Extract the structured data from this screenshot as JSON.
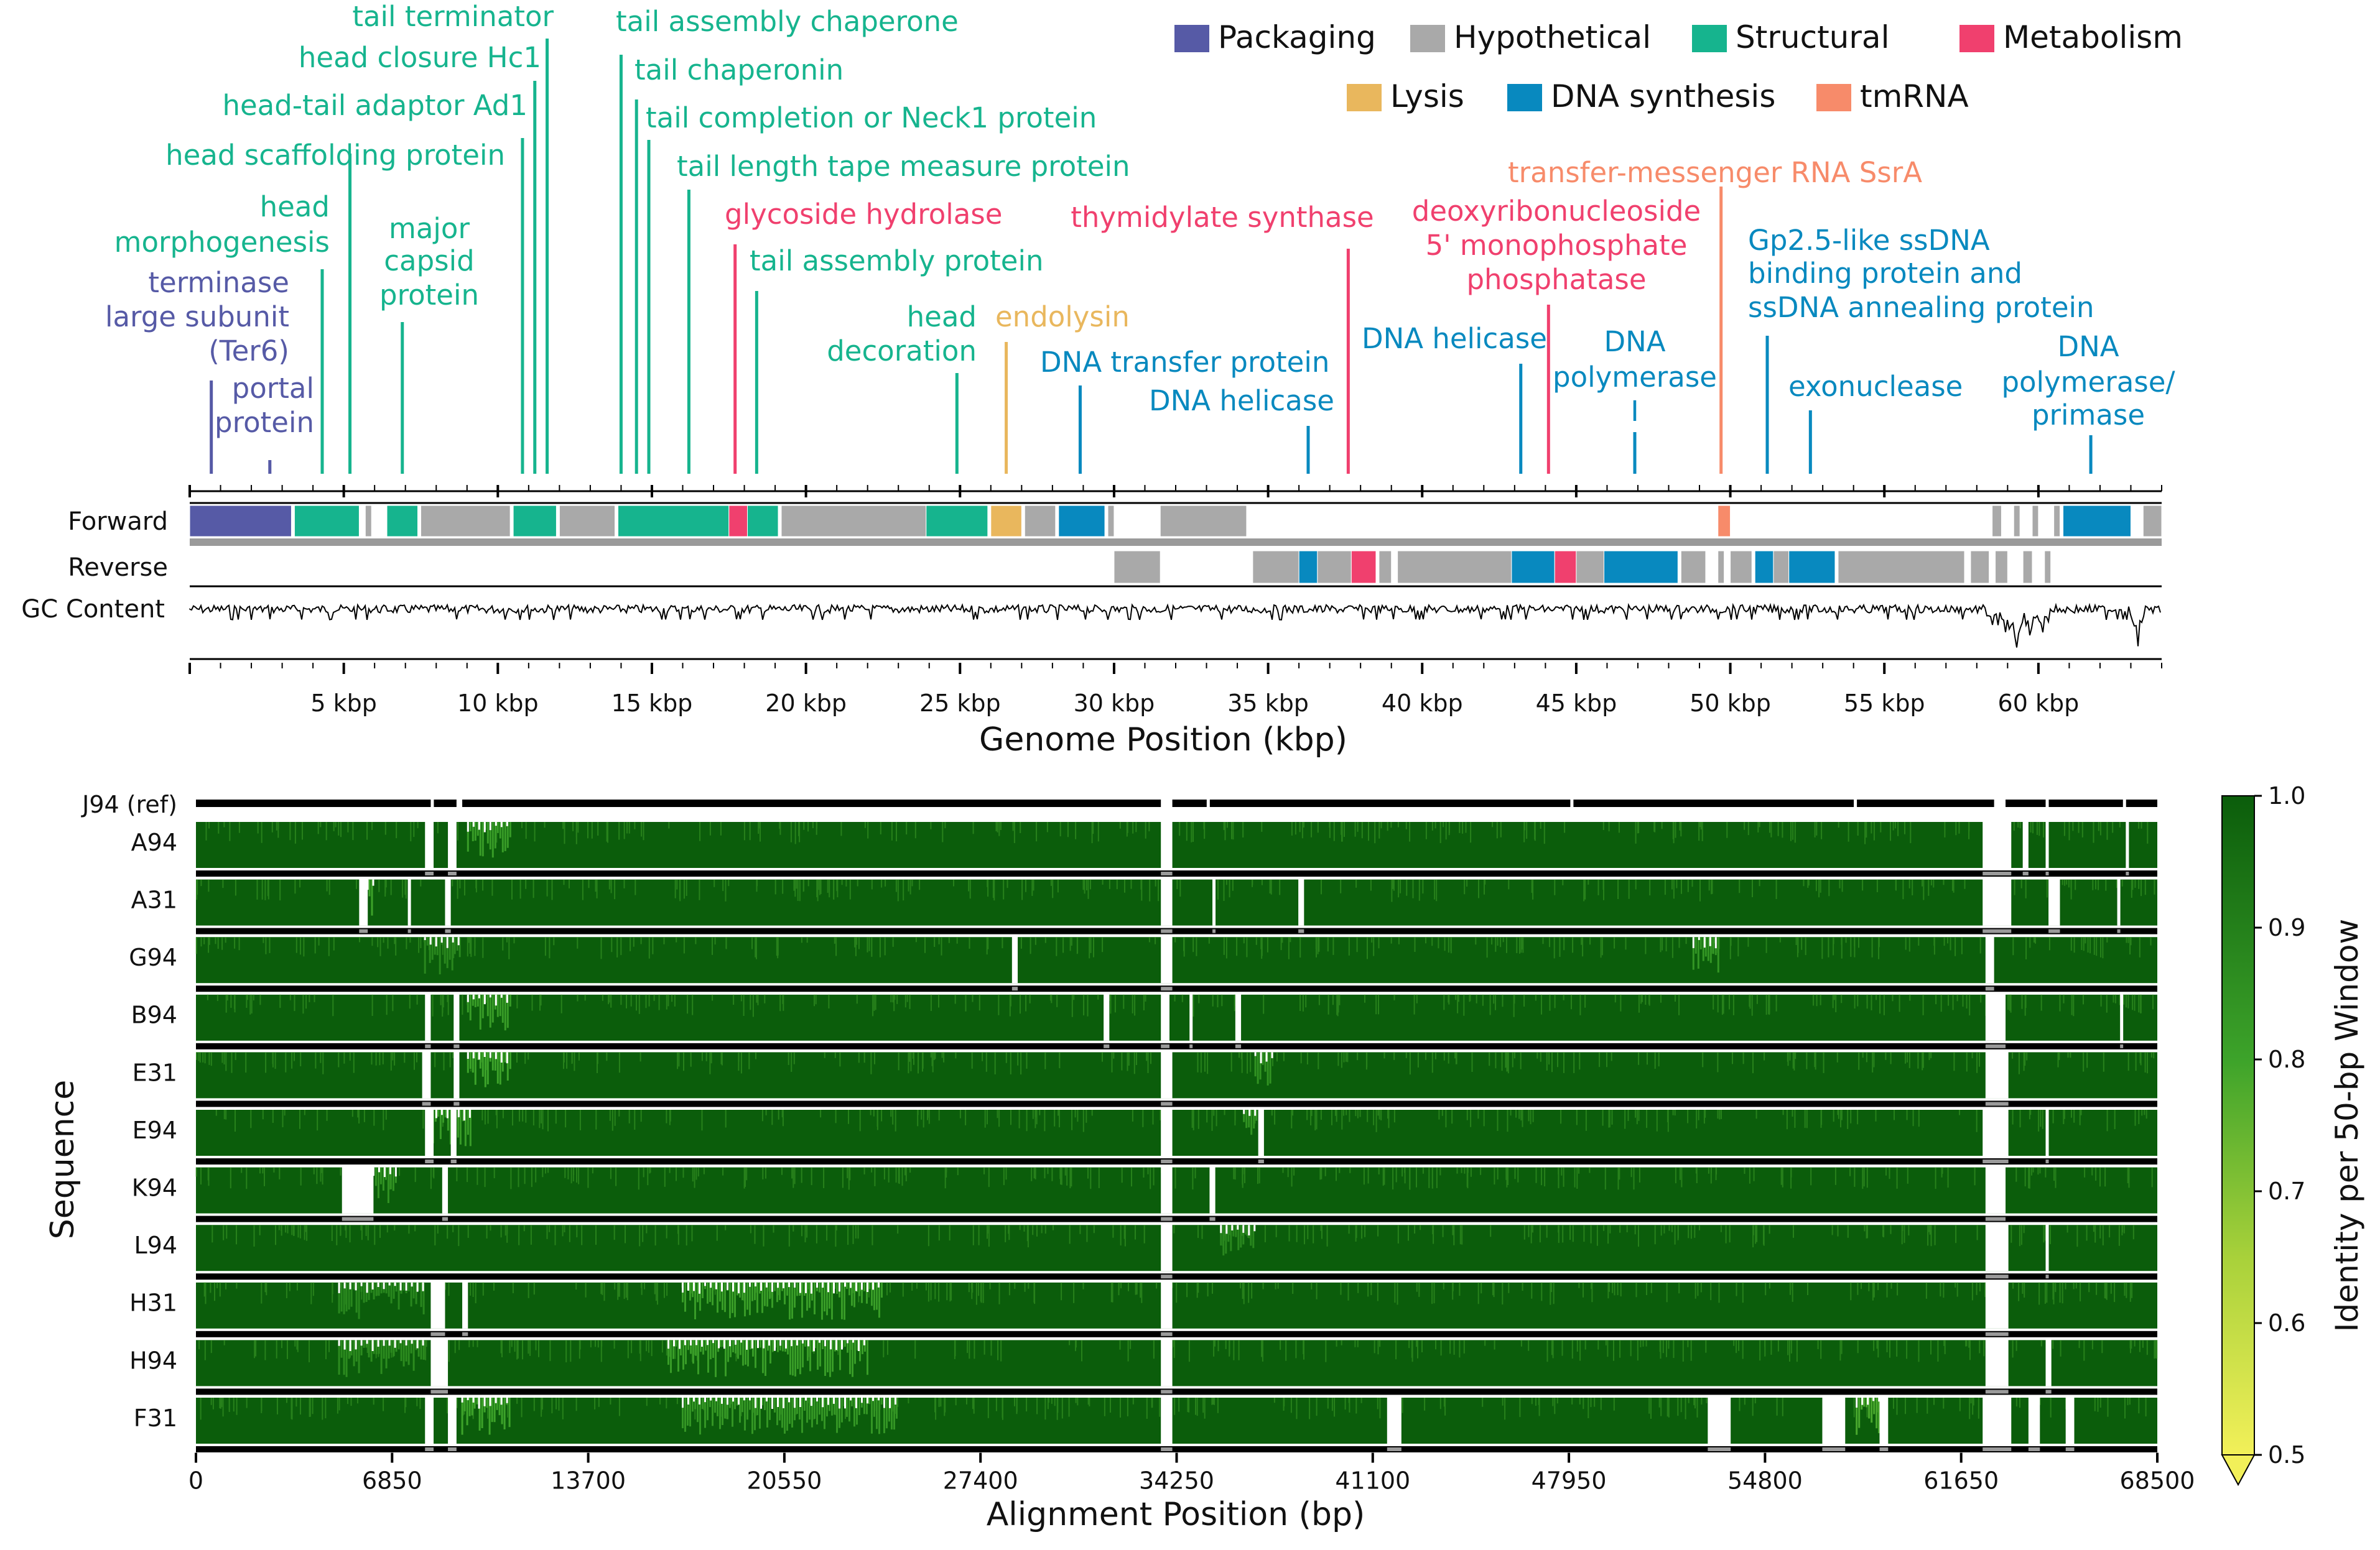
{
  "colors": {
    "Packaging": "#565aa6",
    "Hypothetical": "#a9a9a9",
    "Structural": "#16b48e",
    "Metabolism": "#f0406e",
    "Lysis": "#e9b75d",
    "DNA synthesis": "#0889bf",
    "tmRNA": "#f78b6a",
    "identity_dark": "#0b5d0b",
    "identity_mid": "#2f9a1f",
    "identity_light": "#d9e352"
  },
  "legend": {
    "entries": [
      {
        "label": "Packaging",
        "category": "Packaging"
      },
      {
        "label": "Hypothetical",
        "category": "Hypothetical"
      },
      {
        "label": "Structural",
        "category": "Structural"
      },
      {
        "label": "Metabolism",
        "category": "Metabolism"
      },
      {
        "label": "Lysis",
        "category": "Lysis"
      },
      {
        "label": "DNA synthesis",
        "category": "DNA synthesis"
      },
      {
        "label": "tmRNA",
        "category": "tmRNA"
      }
    ]
  },
  "chart_data": [
    {
      "type": "genome_map",
      "title": "",
      "xlabel": "Genome Position (kbp)",
      "xlim": [
        0,
        64
      ],
      "ticks": [
        5,
        10,
        15,
        20,
        25,
        30,
        35,
        40,
        45,
        50,
        55,
        60
      ],
      "tick_labels": [
        "5 kbp",
        "10 kbp",
        "15 kbp",
        "20 kbp",
        "25 kbp",
        "30 kbp",
        "35 kbp",
        "40 kbp",
        "45 kbp",
        "50 kbp",
        "55 kbp",
        "60 kbp"
      ],
      "track_labels": {
        "forward": "Forward",
        "reverse": "Reverse",
        "gc": "GC Content"
      },
      "annotations": [
        {
          "lines": [
            "terminase",
            "large subunit",
            "(Ter6)"
          ],
          "pos": 0.7,
          "category": "Packaging"
        },
        {
          "lines": [
            "portal",
            "protein"
          ],
          "pos": 2.6,
          "category": "Packaging"
        },
        {
          "lines": [
            "head",
            "morphogenesis"
          ],
          "pos": 4.3,
          "category": "Structural"
        },
        {
          "lines": [
            "head scaffolding protein"
          ],
          "pos": 5.2,
          "category": "Structural"
        },
        {
          "lines": [
            "major",
            "capsid",
            "protein"
          ],
          "pos": 6.9,
          "category": "Structural"
        },
        {
          "lines": [
            "head-tail adaptor Ad1"
          ],
          "pos": 10.8,
          "category": "Structural"
        },
        {
          "lines": [
            "head closure Hc1"
          ],
          "pos": 11.2,
          "category": "Structural"
        },
        {
          "lines": [
            "tail terminator"
          ],
          "pos": 11.6,
          "category": "Structural"
        },
        {
          "lines": [
            "tail assembly chaperone"
          ],
          "pos": 14.0,
          "category": "Structural"
        },
        {
          "lines": [
            "tail chaperonin"
          ],
          "pos": 14.5,
          "category": "Structural"
        },
        {
          "lines": [
            "tail completion or Neck1 protein"
          ],
          "pos": 14.9,
          "category": "Structural"
        },
        {
          "lines": [
            "tail length tape measure protein"
          ],
          "pos": 16.2,
          "category": "Structural"
        },
        {
          "lines": [
            "glycoside hydrolase"
          ],
          "pos": 17.7,
          "category": "Metabolism"
        },
        {
          "lines": [
            "tail assembly protein"
          ],
          "pos": 18.4,
          "category": "Structural"
        },
        {
          "lines": [
            "head",
            "decoration"
          ],
          "pos": 24.9,
          "category": "Structural"
        },
        {
          "lines": [
            "endolysin"
          ],
          "pos": 26.5,
          "category": "Lysis"
        },
        {
          "lines": [
            "DNA transfer protein"
          ],
          "pos": 28.9,
          "category": "DNA synthesis"
        },
        {
          "lines": [
            "DNA helicase"
          ],
          "pos": 36.3,
          "category": "DNA synthesis"
        },
        {
          "lines": [
            "thymidylate synthase"
          ],
          "pos": 37.6,
          "category": "Metabolism"
        },
        {
          "lines": [
            "DNA helicase"
          ],
          "pos": 43.2,
          "category": "DNA synthesis"
        },
        {
          "lines": [
            "deoxyribonucleoside",
            "5' monophosphate",
            "phosphatase"
          ],
          "pos": 44.1,
          "category": "Metabolism"
        },
        {
          "lines": [
            "DNA",
            "polymerase",
            "I"
          ],
          "pos": 46.9,
          "category": "DNA synthesis"
        },
        {
          "lines": [
            "transfer-messenger RNA SsrA"
          ],
          "pos": 49.7,
          "category": "tmRNA"
        },
        {
          "lines": [
            "Gp2.5-like ssDNA",
            "binding protein and",
            "ssDNA annealing protein"
          ],
          "pos": 51.2,
          "category": "DNA synthesis"
        },
        {
          "lines": [
            "exonuclease"
          ],
          "pos": 52.6,
          "category": "DNA synthesis"
        },
        {
          "lines": [
            "DNA",
            "polymerase/",
            "primase"
          ],
          "pos": 61.7,
          "category": "DNA synthesis"
        }
      ],
      "forward_genes": [
        {
          "start": 0.0,
          "end": 3.3,
          "category": "Packaging"
        },
        {
          "start": 3.4,
          "end": 5.5,
          "category": "Structural"
        },
        {
          "start": 5.7,
          "end": 5.9,
          "category": "Hypothetical"
        },
        {
          "start": 6.4,
          "end": 7.4,
          "category": "Structural"
        },
        {
          "start": 7.5,
          "end": 10.4,
          "category": "Hypothetical"
        },
        {
          "start": 10.5,
          "end": 11.9,
          "category": "Structural"
        },
        {
          "start": 12.0,
          "end": 13.8,
          "category": "Hypothetical"
        },
        {
          "start": 13.9,
          "end": 17.5,
          "category": "Structural"
        },
        {
          "start": 17.5,
          "end": 18.1,
          "category": "Metabolism"
        },
        {
          "start": 18.1,
          "end": 19.1,
          "category": "Structural"
        },
        {
          "start": 19.2,
          "end": 23.9,
          "category": "Hypothetical"
        },
        {
          "start": 23.9,
          "end": 25.9,
          "category": "Structural"
        },
        {
          "start": 26.0,
          "end": 27.0,
          "category": "Lysis"
        },
        {
          "start": 27.1,
          "end": 28.1,
          "category": "Hypothetical"
        },
        {
          "start": 28.2,
          "end": 29.7,
          "category": "DNA synthesis"
        },
        {
          "start": 29.8,
          "end": 30.0,
          "category": "Hypothetical"
        },
        {
          "start": 31.5,
          "end": 34.3,
          "category": "Hypothetical"
        },
        {
          "start": 49.6,
          "end": 50.0,
          "category": "tmRNA"
        },
        {
          "start": 58.5,
          "end": 58.8,
          "category": "Hypothetical"
        },
        {
          "start": 59.2,
          "end": 59.4,
          "category": "Hypothetical"
        },
        {
          "start": 59.8,
          "end": 60.0,
          "category": "Hypothetical"
        },
        {
          "start": 60.5,
          "end": 60.7,
          "category": "Hypothetical"
        },
        {
          "start": 60.8,
          "end": 63.0,
          "category": "DNA synthesis"
        },
        {
          "start": 63.4,
          "end": 64.0,
          "category": "Hypothetical"
        }
      ],
      "reverse_genes": [
        {
          "start": 30.0,
          "end": 31.5,
          "category": "Hypothetical"
        },
        {
          "start": 34.5,
          "end": 36.0,
          "category": "Hypothetical"
        },
        {
          "start": 36.0,
          "end": 36.6,
          "category": "DNA synthesis"
        },
        {
          "start": 36.6,
          "end": 37.7,
          "category": "Hypothetical"
        },
        {
          "start": 37.7,
          "end": 38.5,
          "category": "Metabolism"
        },
        {
          "start": 38.6,
          "end": 39.0,
          "category": "Hypothetical"
        },
        {
          "start": 39.2,
          "end": 42.9,
          "category": "Hypothetical"
        },
        {
          "start": 42.9,
          "end": 44.3,
          "category": "DNA synthesis"
        },
        {
          "start": 44.3,
          "end": 45.0,
          "category": "Metabolism"
        },
        {
          "start": 45.0,
          "end": 45.9,
          "category": "Hypothetical"
        },
        {
          "start": 45.9,
          "end": 48.3,
          "category": "DNA synthesis"
        },
        {
          "start": 48.4,
          "end": 49.2,
          "category": "Hypothetical"
        },
        {
          "start": 49.6,
          "end": 49.8,
          "category": "Hypothetical"
        },
        {
          "start": 50.0,
          "end": 50.7,
          "category": "Hypothetical"
        },
        {
          "start": 50.8,
          "end": 51.4,
          "category": "DNA synthesis"
        },
        {
          "start": 51.4,
          "end": 51.9,
          "category": "Hypothetical"
        },
        {
          "start": 51.9,
          "end": 53.4,
          "category": "DNA synthesis"
        },
        {
          "start": 53.5,
          "end": 57.6,
          "category": "Hypothetical"
        },
        {
          "start": 57.8,
          "end": 58.4,
          "category": "Hypothetical"
        },
        {
          "start": 58.6,
          "end": 59.0,
          "category": "Hypothetical"
        },
        {
          "start": 59.5,
          "end": 59.8,
          "category": "Hypothetical"
        },
        {
          "start": 60.2,
          "end": 60.4,
          "category": "Hypothetical"
        }
      ],
      "gc_dips": [
        {
          "pos": 58.5,
          "depth": 0.5
        },
        {
          "pos": 58.9,
          "depth": 0.7
        },
        {
          "pos": 59.3,
          "depth": 0.9
        },
        {
          "pos": 59.7,
          "depth": 0.8
        },
        {
          "pos": 60.1,
          "depth": 0.6
        },
        {
          "pos": 63.2,
          "depth": 1.0
        }
      ]
    },
    {
      "type": "heatmap",
      "xlabel": "Alignment Position (bp)",
      "ylabel": "Sequence",
      "xlim": [
        0,
        68500
      ],
      "xticks": [
        0,
        6850,
        13700,
        20550,
        27400,
        34250,
        41100,
        47950,
        54800,
        61650,
        68500
      ],
      "xtick_labels": [
        "0",
        "6850",
        "13700",
        "20550",
        "27400",
        "34250",
        "41100",
        "47950",
        "54800",
        "61650",
        "68500"
      ],
      "colorbar": {
        "label": "Identity per 50-bp Window",
        "range": [
          0.5,
          1.0
        ],
        "ticks": [
          0.5,
          0.6,
          0.7,
          0.8,
          0.9,
          1.0
        ],
        "tick_labels": [
          "0.5",
          "0.6",
          "0.7",
          "0.8",
          "0.9",
          "1.0"
        ]
      },
      "reference": {
        "name": "J94 (ref)",
        "gaps": [
          [
            8200,
            8300
          ],
          [
            9100,
            9300
          ],
          [
            33700,
            34100
          ],
          [
            35300,
            35350
          ],
          [
            48000,
            48100
          ],
          [
            57900,
            58000
          ],
          [
            62800,
            63200
          ],
          [
            64600,
            64700
          ],
          [
            67300,
            67400
          ]
        ]
      },
      "sequences": [
        {
          "name": "A94",
          "gaps": [
            [
              8000,
              8300
            ],
            [
              8800,
              9100
            ],
            [
              33700,
              34100
            ],
            [
              62400,
              63400
            ],
            [
              63800,
              64000
            ],
            [
              64600,
              64700
            ],
            [
              67400,
              67500
            ]
          ],
          "low_regions": [
            [
              9500,
              11000,
              0.82
            ]
          ]
        },
        {
          "name": "A31",
          "gaps": [
            [
              5700,
              6000
            ],
            [
              7400,
              7500
            ],
            [
              8700,
              8900
            ],
            [
              33700,
              34100
            ],
            [
              35500,
              35600
            ],
            [
              38500,
              38700
            ],
            [
              62400,
              63400
            ],
            [
              64700,
              65100
            ],
            [
              67100,
              67200
            ]
          ],
          "low_regions": [
            [
              5800,
              6200,
              0.8
            ]
          ]
        },
        {
          "name": "G94",
          "gaps": [
            [
              28500,
              28700
            ],
            [
              33700,
              34100
            ],
            [
              62500,
              62800
            ]
          ],
          "low_regions": [
            [
              52300,
              53200,
              0.84
            ],
            [
              8000,
              9300,
              0.88
            ]
          ]
        },
        {
          "name": "B94",
          "gaps": [
            [
              8000,
              8200
            ],
            [
              9000,
              9200
            ],
            [
              31700,
              31900
            ],
            [
              33700,
              34000
            ],
            [
              34700,
              34800
            ],
            [
              36300,
              36500
            ],
            [
              62500,
              63200
            ],
            [
              67200,
              67300
            ]
          ],
          "low_regions": [
            [
              9500,
              11000,
              0.82
            ]
          ]
        },
        {
          "name": "E31",
          "gaps": [
            [
              7900,
              8200
            ],
            [
              9000,
              9200
            ],
            [
              33700,
              34100
            ],
            [
              62500,
              63300
            ]
          ],
          "low_regions": [
            [
              9500,
              11000,
              0.8
            ],
            [
              37000,
              37600,
              0.85
            ]
          ]
        },
        {
          "name": "E94",
          "gaps": [
            [
              8000,
              8300
            ],
            [
              8900,
              9100
            ],
            [
              33700,
              34100
            ],
            [
              37100,
              37300
            ],
            [
              62400,
              63300
            ],
            [
              64600,
              64700
            ]
          ],
          "low_regions": [
            [
              8200,
              9600,
              0.82
            ],
            [
              36600,
              37100,
              0.85
            ]
          ]
        },
        {
          "name": "K94",
          "gaps": [
            [
              5100,
              6200
            ],
            [
              8600,
              8800
            ],
            [
              33700,
              34100
            ],
            [
              35400,
              35600
            ],
            [
              62500,
              63200
            ]
          ],
          "low_regions": [
            [
              6200,
              7000,
              0.85
            ]
          ]
        },
        {
          "name": "L94",
          "gaps": [
            [
              33700,
              34100
            ],
            [
              62500,
              63300
            ],
            [
              64600,
              64700
            ]
          ],
          "low_regions": [
            [
              35800,
              37000,
              0.88
            ]
          ]
        },
        {
          "name": "H31",
          "gaps": [
            [
              8200,
              8700
            ],
            [
              9300,
              9500
            ],
            [
              33700,
              34100
            ],
            [
              62500,
              63300
            ]
          ],
          "low_regions": [
            [
              17000,
              24000,
              0.82
            ],
            [
              5000,
              8000,
              0.88
            ]
          ]
        },
        {
          "name": "H94",
          "gaps": [
            [
              8200,
              8800
            ],
            [
              33700,
              34100
            ],
            [
              62500,
              63300
            ],
            [
              64600,
              64800
            ]
          ],
          "low_regions": [
            [
              16500,
              23500,
              0.82
            ],
            [
              5000,
              8000,
              0.87
            ]
          ]
        },
        {
          "name": "F31",
          "gaps": [
            [
              8000,
              8300
            ],
            [
              8800,
              9100
            ],
            [
              33700,
              34100
            ],
            [
              41600,
              42100
            ],
            [
              52800,
              53600
            ],
            [
              56800,
              57600
            ],
            [
              58800,
              59100
            ],
            [
              62400,
              63400
            ],
            [
              64000,
              64400
            ],
            [
              65300,
              65600
            ]
          ],
          "low_regions": [
            [
              9300,
              11000,
              0.8
            ],
            [
              17000,
              24500,
              0.84
            ],
            [
              58000,
              58800,
              0.78
            ]
          ]
        }
      ]
    }
  ]
}
